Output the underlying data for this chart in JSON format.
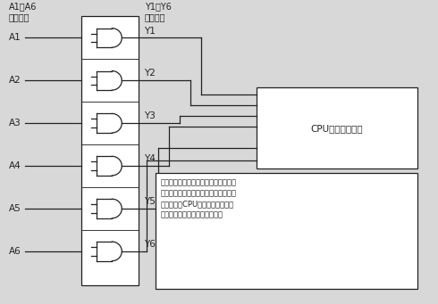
{
  "fig_width": 4.9,
  "fig_height": 3.41,
  "dpi": 100,
  "bg_color": "#d8d8d8",
  "title_left_line1": "A1～A6",
  "title_left_line2": "信号输入",
  "title_mid_line1": "Y1～Y6",
  "title_mid_line2": "信号输出",
  "inputs": [
    "A1",
    "A2",
    "A3",
    "A4",
    "A5",
    "A6"
  ],
  "outputs": [
    "Y1",
    "Y2",
    "Y3",
    "Y4",
    "Y5",
    "Y6"
  ],
  "cpu_label": "CPU键控电路接口",
  "ann_line1": "输入端电平变化，在内部电路处理后，",
  "ann_line2": "相应输出端就会呈高低电平变化，这个",
  "ann_line3": "电平被送到CPU处理，处理后，内",
  "ann_line4": "部电路处理后内部电路应的动作",
  "lc": "#222222",
  "lw": 0.9
}
